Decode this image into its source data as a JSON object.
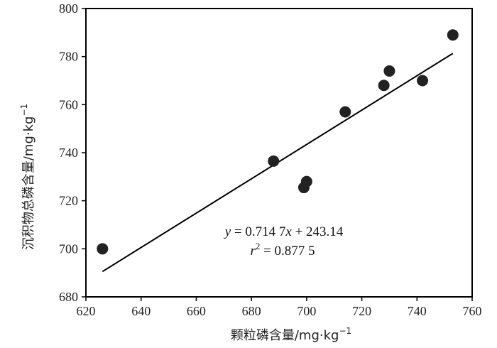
{
  "chart_data": {
    "type": "scatter",
    "title": "",
    "xlabel": "颗粒磷含量/mg·kg",
    "xlabel_sup": "−1",
    "ylabel": "沉积物总磷含量/mg·kg",
    "ylabel_sup": "−1",
    "xlim": [
      620,
      760
    ],
    "ylim": [
      680,
      800
    ],
    "xticks": [
      620,
      640,
      660,
      680,
      700,
      720,
      740,
      760
    ],
    "yticks": [
      680,
      700,
      720,
      740,
      760,
      780,
      800
    ],
    "points": [
      {
        "x": 626,
        "y": 700
      },
      {
        "x": 688,
        "y": 736.5
      },
      {
        "x": 699,
        "y": 725.5
      },
      {
        "x": 700,
        "y": 728
      },
      {
        "x": 714,
        "y": 757
      },
      {
        "x": 728,
        "y": 768
      },
      {
        "x": 730,
        "y": 774
      },
      {
        "x": 742,
        "y": 770
      },
      {
        "x": 753,
        "y": 789
      }
    ],
    "fit": {
      "slope": 0.7147,
      "intercept": 243.14,
      "x_range": [
        626,
        753
      ]
    },
    "equation": {
      "y_var": "y",
      "eq1": " = 0.714 7",
      "x_var": "x",
      "eq2": " + 243.14",
      "r_var": "r",
      "r_exp": "2",
      "r_val": " = 0.877 5"
    },
    "grid": false,
    "marker_color": "#222222",
    "line_color": "#000000"
  }
}
